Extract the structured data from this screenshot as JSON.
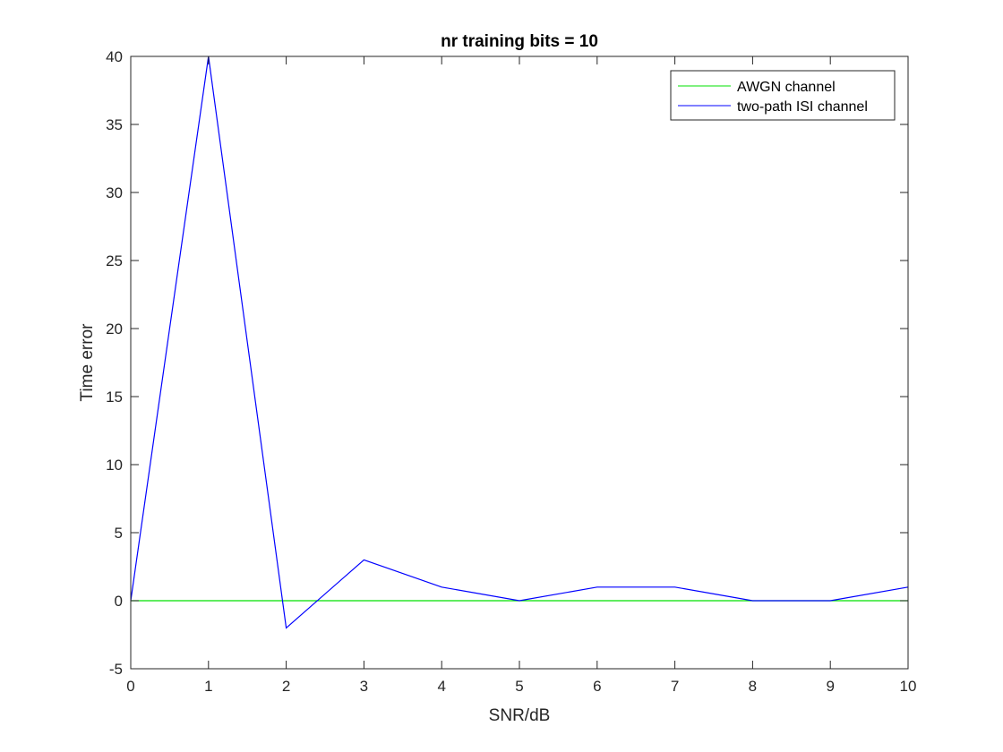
{
  "chart_data": {
    "type": "line",
    "title": "nr training bits = 10",
    "xlabel": "SNR/dB",
    "ylabel": "Time error",
    "xlim": [
      0,
      10
    ],
    "ylim": [
      -5,
      40
    ],
    "xticks": [
      0,
      1,
      2,
      3,
      4,
      5,
      6,
      7,
      8,
      9,
      10
    ],
    "yticks": [
      -5,
      0,
      5,
      10,
      15,
      20,
      25,
      30,
      35,
      40
    ],
    "grid": false,
    "box": true,
    "legend_location": "top-right",
    "x": [
      0,
      1,
      2,
      3,
      4,
      5,
      6,
      7,
      8,
      9,
      10
    ],
    "series": [
      {
        "name": "AWGN channel",
        "color": "#00e000",
        "values": [
          0,
          0,
          0,
          0,
          0,
          0,
          0,
          0,
          0,
          0,
          0
        ]
      },
      {
        "name": "two-path ISI channel",
        "color": "#0000ff",
        "values": [
          0,
          40,
          -2,
          3,
          1,
          0,
          1,
          1,
          0,
          0,
          1
        ]
      }
    ]
  }
}
